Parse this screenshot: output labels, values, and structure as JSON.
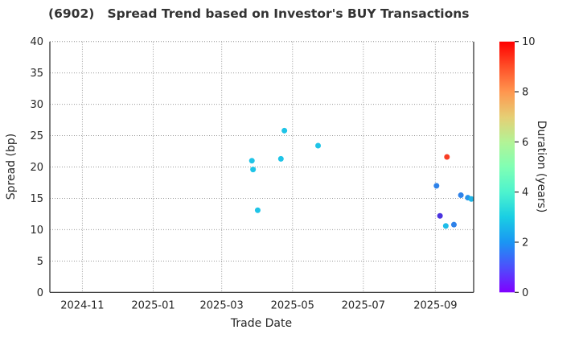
{
  "chart_data": {
    "type": "scatter",
    "title": "(6902)   Spread Trend based on Investor's BUY Transactions",
    "xlabel": "Trade Date",
    "ylabel": "Spread (bp)",
    "x_domain": [
      "2024-10-04",
      "2025-10-04"
    ],
    "ylim": [
      0,
      40
    ],
    "y_ticks": [
      0,
      5,
      10,
      15,
      20,
      25,
      30,
      35,
      40
    ],
    "x_ticks": [
      {
        "date": "2024-11-01",
        "label": "2024-11"
      },
      {
        "date": "2025-01-01",
        "label": "2025-01"
      },
      {
        "date": "2025-03-01",
        "label": "2025-03"
      },
      {
        "date": "2025-05-01",
        "label": "2025-05"
      },
      {
        "date": "2025-07-01",
        "label": "2025-07"
      },
      {
        "date": "2025-09-01",
        "label": "2025-09"
      }
    ],
    "grid": true,
    "legend_position": "none",
    "points": [
      {
        "date": "2025-03-27",
        "spread": 21.0,
        "duration_years": 3.0,
        "color": "#1fc4e7"
      },
      {
        "date": "2025-03-28",
        "spread": 19.6,
        "duration_years": 3.0,
        "color": "#1fc4e7"
      },
      {
        "date": "2025-04-01",
        "spread": 13.1,
        "duration_years": 3.0,
        "color": "#1fc4e7"
      },
      {
        "date": "2025-04-21",
        "spread": 21.3,
        "duration_years": 3.0,
        "color": "#1fc4e7"
      },
      {
        "date": "2025-04-24",
        "spread": 25.8,
        "duration_years": 3.0,
        "color": "#1fc4e7"
      },
      {
        "date": "2025-05-23",
        "spread": 23.4,
        "duration_years": 3.0,
        "color": "#1fc4e7"
      },
      {
        "date": "2025-09-02",
        "spread": 17.0,
        "duration_years": 1.9,
        "color": "#2e82e9"
      },
      {
        "date": "2025-09-05",
        "spread": 12.2,
        "duration_years": 0.8,
        "color": "#4a33df"
      },
      {
        "date": "2025-09-10",
        "spread": 10.6,
        "duration_years": 2.6,
        "color": "#1fbce8"
      },
      {
        "date": "2025-09-11",
        "spread": 21.6,
        "duration_years": 9.3,
        "color": "#f83d24"
      },
      {
        "date": "2025-09-17",
        "spread": 10.8,
        "duration_years": 1.9,
        "color": "#2e82e9"
      },
      {
        "date": "2025-09-23",
        "spread": 15.5,
        "duration_years": 1.9,
        "color": "#2e82e9"
      },
      {
        "date": "2025-09-29",
        "spread": 15.1,
        "duration_years": 2.1,
        "color": "#2694ea"
      },
      {
        "date": "2025-10-02",
        "spread": 14.9,
        "duration_years": 2.5,
        "color": "#1fb5e5"
      }
    ],
    "colorbar": {
      "label": "Duration (years)",
      "min": 0,
      "max": 10,
      "ticks": [
        0,
        2,
        4,
        6,
        8,
        10
      ],
      "colormap": "rainbow",
      "gradient": [
        [
          0.0,
          "#8000ff"
        ],
        [
          0.1,
          "#4d4ffc"
        ],
        [
          0.2,
          "#1a96f3"
        ],
        [
          0.3,
          "#1acee3"
        ],
        [
          0.4,
          "#4df3ce"
        ],
        [
          0.5,
          "#80ffb4"
        ],
        [
          0.6,
          "#b3f396"
        ],
        [
          0.7,
          "#e6ce74"
        ],
        [
          0.8,
          "#ff964f"
        ],
        [
          0.9,
          "#ff4f28"
        ],
        [
          1.0,
          "#ff0000"
        ]
      ]
    },
    "colors": {
      "grid": "#9a9a9a",
      "spine": "#262626",
      "text": "#262626",
      "background": "#ffffff"
    }
  }
}
